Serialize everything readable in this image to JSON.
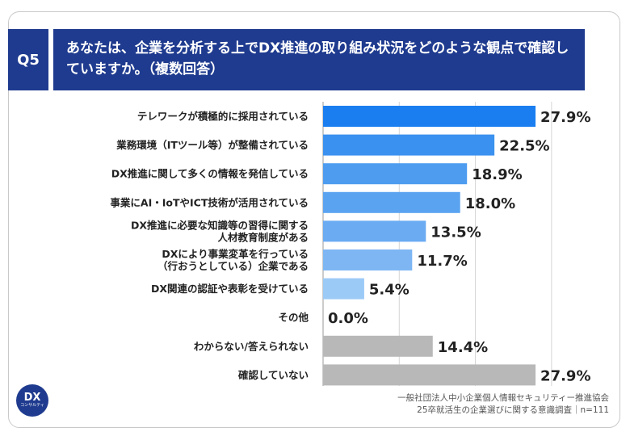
{
  "question": {
    "badge": "Q5",
    "text": "あなたは、企業を分析する上でDX推進の取り組み状況をどのような観点で確認していますか。（複数回答）"
  },
  "chart_data": {
    "type": "bar",
    "orientation": "horizontal",
    "unit": "%",
    "xlim": [
      0,
      35
    ],
    "grid": true,
    "categories": [
      [
        "テレワークが積極的に採用されている"
      ],
      [
        "業務環境（ITツール等）が整備されている"
      ],
      [
        "DX推進に関して多くの情報を発信している"
      ],
      [
        "事業にAI・IoTやICT技術が活用されている"
      ],
      [
        "DX推進に必要な知識等の習得に関する",
        "人材教育制度がある"
      ],
      [
        "DXにより事業変革を行っている",
        "（行おうとしている）企業である"
      ],
      [
        "DX関連の認証や表彰を受けている"
      ],
      [
        "その他"
      ],
      [
        "わからない/答えられない"
      ],
      [
        "確認していない"
      ]
    ],
    "values": [
      27.9,
      22.5,
      18.9,
      18.0,
      13.5,
      11.7,
      5.4,
      0.0,
      14.4,
      27.9
    ],
    "value_labels": [
      "27.9%",
      "22.5%",
      "18.9%",
      "18.0%",
      "13.5%",
      "11.7%",
      "5.4%",
      "0.0%",
      "14.4%",
      "27.9%"
    ],
    "bar_colors": [
      "#1a7ef0",
      "#3a91ef",
      "#4d9cf0",
      "#5aa3f1",
      "#6aabf2",
      "#7db6f3",
      "#9ccaf7",
      "#a9d0f7",
      "#b8b8b8",
      "#b8b8b8"
    ],
    "grid_color": "#d5d5d5"
  },
  "logo": {
    "mark": "DX",
    "sub": "コンサルティ"
  },
  "footer": {
    "line1": "一般社団法人中小企業個人情報セキュリティー推進協会",
    "line2": "25卒就活生の企業選びに関する意識調査｜n=111"
  }
}
